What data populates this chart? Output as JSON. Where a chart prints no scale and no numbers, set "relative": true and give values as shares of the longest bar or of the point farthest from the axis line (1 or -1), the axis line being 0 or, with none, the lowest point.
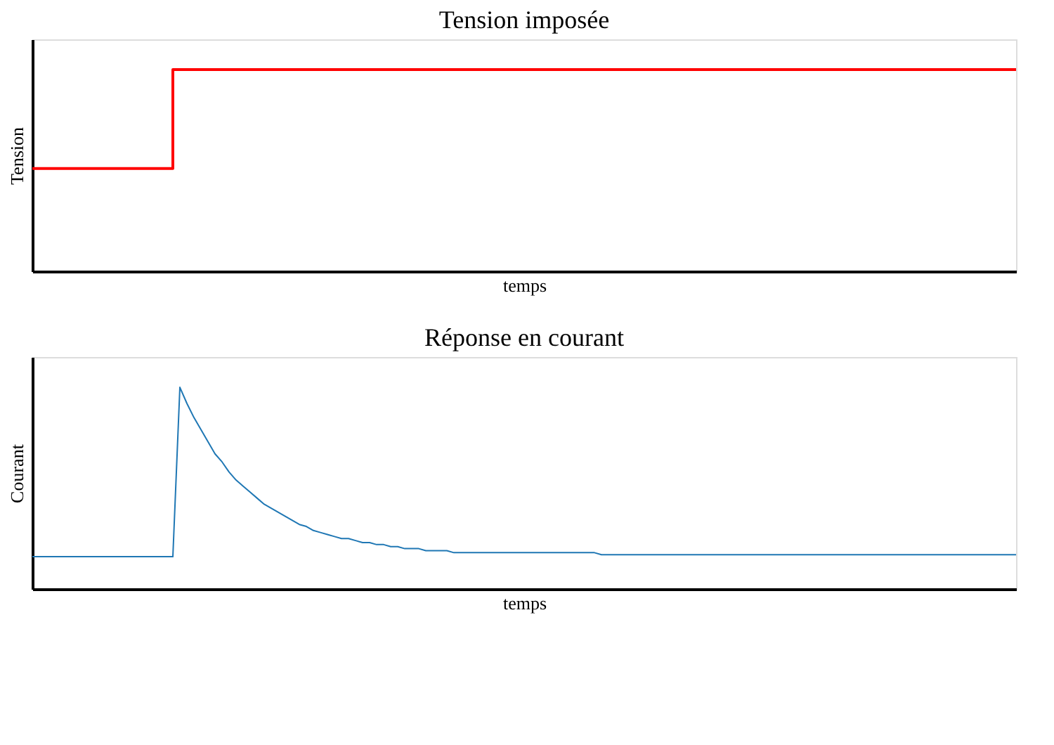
{
  "chart_data": [
    {
      "type": "step",
      "title": "Tension imposée",
      "xlabel": "temps",
      "ylabel": "Tension",
      "relative": true,
      "tick_labels": false,
      "categories": [
        null,
        null,
        null,
        null,
        null,
        null,
        null,
        null,
        null,
        null,
        null,
        null,
        null,
        null,
        null
      ],
      "series": [
        {
          "color": "#ff0000",
          "values": [
            0.51,
            0.51,
            1,
            1,
            1,
            1,
            1,
            1,
            1,
            1,
            1,
            1,
            1,
            1,
            1
          ]
        }
      ]
    },
    {
      "type": "line",
      "title": "Réponse en courant",
      "xlabel": "temps",
      "ylabel": "Courant",
      "relative": true,
      "tick_labels": false,
      "categories": [
        null,
        null,
        null,
        null,
        null,
        null,
        null,
        null,
        null,
        null,
        null,
        null,
        null,
        null,
        null,
        null,
        null,
        null,
        null,
        null,
        null,
        null,
        null,
        null,
        null,
        null,
        null,
        null,
        null,
        null,
        null,
        null,
        null,
        null,
        null,
        null,
        null,
        null,
        null,
        null,
        null,
        null,
        null,
        null,
        null,
        null,
        null,
        null,
        null,
        null,
        null,
        null,
        null,
        null,
        null,
        null,
        null,
        null,
        null,
        null,
        null,
        null,
        null,
        null,
        null,
        null,
        null,
        null,
        null,
        null,
        null,
        null,
        null,
        null,
        null,
        null,
        null,
        null,
        null,
        null,
        null,
        null,
        null,
        null,
        null,
        null,
        null,
        null,
        null,
        null,
        null,
        null,
        null,
        null,
        null,
        null,
        null,
        null,
        null,
        null,
        null,
        null,
        null,
        null,
        null,
        null,
        null,
        null,
        null,
        null,
        null,
        null,
        null,
        null,
        null,
        null,
        null,
        null,
        null,
        null,
        null,
        null,
        null,
        null,
        null,
        null,
        null,
        null,
        null,
        null,
        null,
        null,
        null,
        null,
        null,
        null,
        null,
        null,
        null,
        null,
        null
      ],
      "series": [
        {
          "color": "#1f77b4",
          "values": [
            0.16,
            0.16,
            0.16,
            0.16,
            0.16,
            0.16,
            0.16,
            0.16,
            0.16,
            0.16,
            0.16,
            0.16,
            0.16,
            0.16,
            0.16,
            0.16,
            0.16,
            0.16,
            0.16,
            0.16,
            0.16,
            1.0,
            0.92,
            0.85,
            0.79,
            0.73,
            0.67,
            0.63,
            0.58,
            0.54,
            0.51,
            0.48,
            0.45,
            0.42,
            0.4,
            0.38,
            0.36,
            0.34,
            0.32,
            0.31,
            0.29,
            0.28,
            0.27,
            0.26,
            0.25,
            0.25,
            0.24,
            0.23,
            0.23,
            0.22,
            0.22,
            0.21,
            0.21,
            0.2,
            0.2,
            0.2,
            0.19,
            0.19,
            0.19,
            0.19,
            0.18,
            0.18,
            0.18,
            0.18,
            0.18,
            0.18,
            0.18,
            0.18,
            0.18,
            0.18,
            0.18,
            0.18,
            0.18,
            0.18,
            0.18,
            0.18,
            0.18,
            0.18,
            0.18,
            0.18,
            0.18,
            0.17,
            0.17,
            0.17,
            0.17,
            0.17,
            0.17,
            0.17,
            0.17,
            0.17,
            0.17,
            0.17,
            0.17,
            0.17,
            0.17,
            0.17,
            0.17,
            0.17,
            0.17,
            0.17,
            0.17,
            0.17,
            0.17,
            0.17,
            0.17,
            0.17,
            0.17,
            0.17,
            0.17,
            0.17,
            0.17,
            0.17,
            0.17,
            0.17,
            0.17,
            0.17,
            0.17,
            0.17,
            0.17,
            0.17,
            0.17,
            0.17,
            0.17,
            0.17,
            0.17,
            0.17,
            0.17,
            0.17,
            0.17,
            0.17,
            0.17,
            0.17,
            0.17,
            0.17,
            0.17,
            0.17,
            0.17,
            0.17,
            0.17,
            0.17,
            0.17
          ]
        }
      ]
    }
  ]
}
